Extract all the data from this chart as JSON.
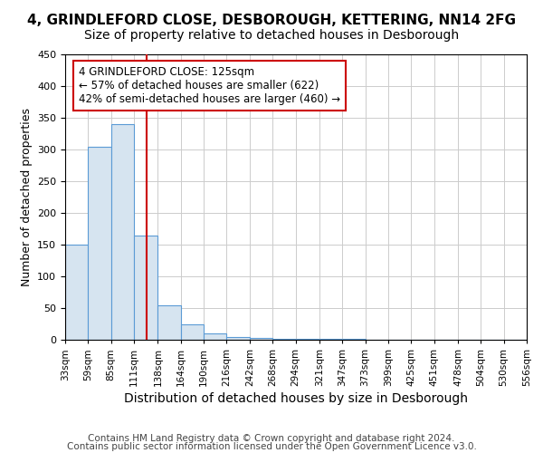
{
  "title1": "4, GRINDLEFORD CLOSE, DESBOROUGH, KETTERING, NN14 2FG",
  "title2": "Size of property relative to detached houses in Desborough",
  "xlabel": "Distribution of detached houses by size in Desborough",
  "ylabel": "Number of detached properties",
  "bar_values": [
    150,
    305,
    340,
    165,
    55,
    25,
    10,
    5,
    3,
    2,
    1,
    1,
    1,
    0,
    0,
    0,
    0,
    0,
    0,
    0
  ],
  "bin_edges": [
    33,
    59,
    85,
    111,
    138,
    164,
    190,
    216,
    242,
    268,
    294,
    321,
    347,
    373,
    399,
    425,
    451,
    478,
    504,
    530,
    556
  ],
  "bar_color": "#d6e4f0",
  "bar_edge_color": "#5b9bd5",
  "property_size": 125,
  "annotation_line1": "4 GRINDLEFORD CLOSE: 125sqm",
  "annotation_line2": "← 57% of detached houses are smaller (622)",
  "annotation_line3": "42% of semi-detached houses are larger (460) →",
  "annotation_box_color": "#ffffff",
  "annotation_box_edge": "#cc0000",
  "vline_color": "#cc0000",
  "grid_color": "#cccccc",
  "footnote1": "Contains HM Land Registry data © Crown copyright and database right 2024.",
  "footnote2": "Contains public sector information licensed under the Open Government Licence v3.0.",
  "ylim": [
    0,
    450
  ],
  "xlim": [
    33,
    556
  ],
  "tick_labels": [
    "33sqm",
    "59sqm",
    "85sqm",
    "111sqm",
    "138sqm",
    "164sqm",
    "190sqm",
    "216sqm",
    "242sqm",
    "268sqm",
    "294sqm",
    "321sqm",
    "347sqm",
    "373sqm",
    "399sqm",
    "425sqm",
    "451sqm",
    "478sqm",
    "504sqm",
    "530sqm",
    "556sqm"
  ],
  "title1_fontsize": 11,
  "title2_fontsize": 10,
  "xlabel_fontsize": 10,
  "ylabel_fontsize": 9,
  "footnote_fontsize": 7.5,
  "background_color": "#ffffff"
}
